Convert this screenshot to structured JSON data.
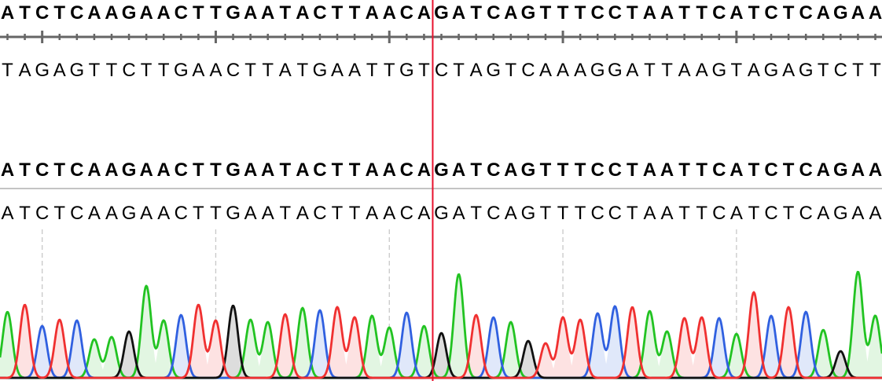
{
  "reference": {
    "sequence": "ATCTCAAGAACTTGAATACTTAACAGATCAGTTTCCTAATTCATCTCAGAA",
    "complement": "TAGAGTTCTTGAACTTATGAATTGTCTAGTCAAAGGATTAAGTAGAGTCTT"
  },
  "read": {
    "consensus": "ATCTCAAGAACTTGAATACTTAACAGATCAGTTTCCTAATTCATCTCAGAA",
    "basecalls": "ATCTCAAGAACTTGAATACTTAACAGATCAGTTTCCTAATTCATCTCAGAA",
    "peak_intensities": [
      84,
      93,
      66,
      74,
      73,
      49,
      52,
      59,
      117,
      73,
      80,
      93,
      73,
      92,
      74,
      71,
      81,
      89,
      86,
      90,
      77,
      79,
      64,
      83,
      66,
      57,
      132,
      80,
      77,
      71,
      47,
      44,
      77,
      74,
      82,
      91,
      90,
      85,
      59,
      76,
      77,
      76,
      56,
      109,
      79,
      90,
      84,
      61,
      34,
      135,
      79
    ]
  },
  "ruler": {
    "minor_every": 1,
    "major_every": 10,
    "first_major_base": 3
  },
  "cursor": {
    "after_base": 25,
    "color": "#e8112d"
  },
  "colors": {
    "A": "#22c322",
    "C": "#3060e0",
    "G": "#111111",
    "T": "#f03030"
  },
  "fill_colors": {
    "A": "#e2f6e2",
    "C": "#e0e8fa",
    "G": "#dddddd",
    "T": "#fde2e2"
  }
}
